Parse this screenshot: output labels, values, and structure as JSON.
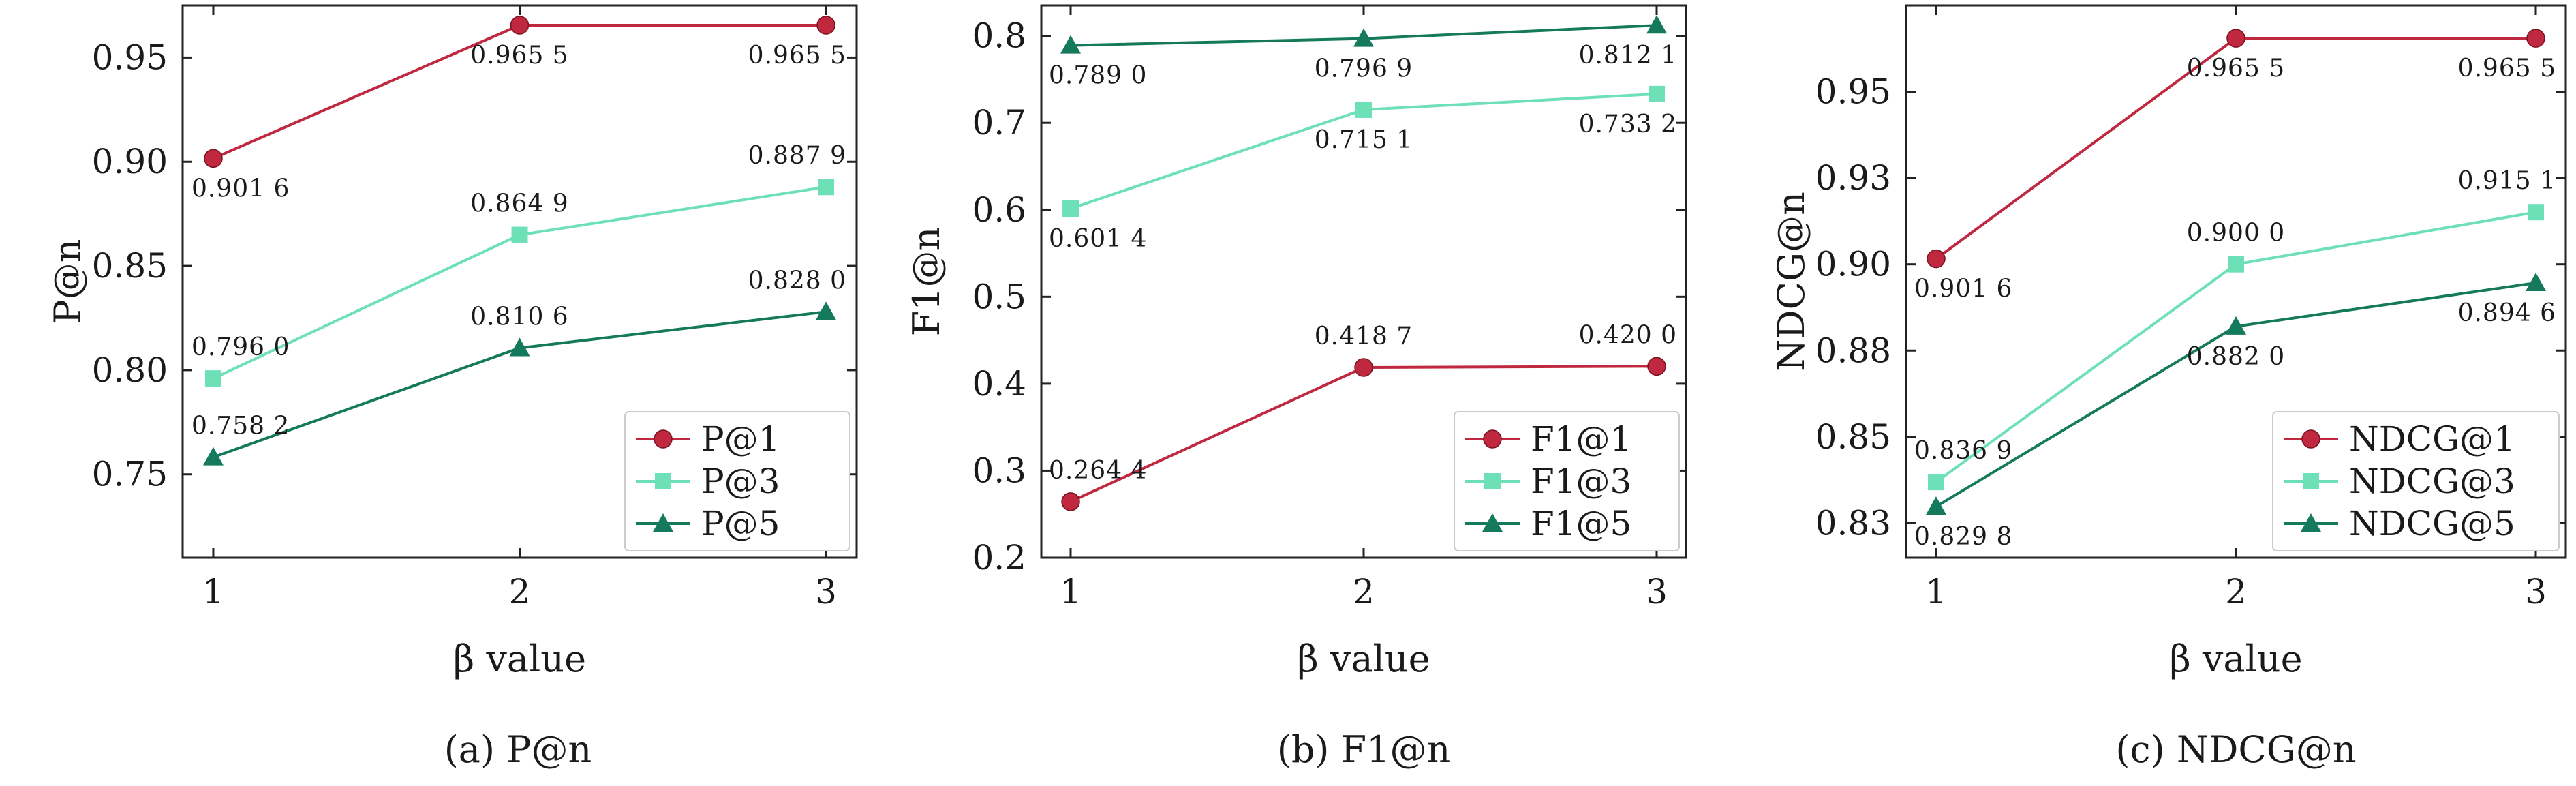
{
  "chart_data": [
    {
      "type": "line",
      "caption": "(a) P@n",
      "xlabel": "β value",
      "ylabel": "P@n",
      "x": [
        1,
        2,
        3
      ],
      "xticks": [
        "1",
        "2",
        "3"
      ],
      "xlim": [
        0.9,
        3.1
      ],
      "ylim": [
        0.71,
        0.975
      ],
      "yticks": [
        "0.75",
        "0.80",
        "0.85",
        "0.90",
        "0.95"
      ],
      "yticks_values": [
        0.75,
        0.8,
        0.85,
        0.9,
        0.95
      ],
      "legend_position": "bottom-right",
      "series": [
        {
          "name": "P@1",
          "color": "#c0283f",
          "marker": "circle",
          "values": [
            0.9016,
            0.9655,
            0.9655
          ],
          "labels": [
            "0.901 6",
            "0.965 5",
            "0.965 5"
          ],
          "label_pos": [
            "below",
            "below",
            "below"
          ]
        },
        {
          "name": "P@3",
          "color": "#6de0b7",
          "marker": "square",
          "values": [
            0.796,
            0.8649,
            0.8879
          ],
          "labels": [
            "0.796 0",
            "0.864 9",
            "0.887 9"
          ],
          "label_pos": [
            "above",
            "above",
            "above"
          ]
        },
        {
          "name": "P@5",
          "color": "#157a5c",
          "marker": "triangle",
          "values": [
            0.7582,
            0.8106,
            0.828
          ],
          "labels": [
            "0.758 2",
            "0.810 6",
            "0.828 0"
          ],
          "label_pos": [
            "above",
            "above",
            "above"
          ]
        }
      ]
    },
    {
      "type": "line",
      "caption": "(b) F1@n",
      "xlabel": "β value",
      "ylabel": "F1@n",
      "x": [
        1,
        2,
        3
      ],
      "xticks": [
        "1",
        "2",
        "3"
      ],
      "xlim": [
        0.9,
        3.1
      ],
      "ylim": [
        0.2,
        0.835
      ],
      "yticks": [
        "0.2",
        "0.3",
        "0.4",
        "0.5",
        "0.6",
        "0.7",
        "0.8"
      ],
      "yticks_values": [
        0.2,
        0.3,
        0.4,
        0.5,
        0.6,
        0.7,
        0.8
      ],
      "legend_position": "bottom-right",
      "series": [
        {
          "name": "F1@1",
          "color": "#c0283f",
          "marker": "circle",
          "values": [
            0.2644,
            0.4187,
            0.42
          ],
          "labels": [
            "0.264 4",
            "0.418 7",
            "0.420 0"
          ],
          "label_pos": [
            "above",
            "above",
            "above"
          ]
        },
        {
          "name": "F1@3",
          "color": "#6de0b7",
          "marker": "square",
          "values": [
            0.6014,
            0.7151,
            0.7332
          ],
          "labels": [
            "0.601 4",
            "0.715 1",
            "0.733 2"
          ],
          "label_pos": [
            "below",
            "below",
            "below"
          ]
        },
        {
          "name": "F1@5",
          "color": "#157a5c",
          "marker": "triangle",
          "values": [
            0.789,
            0.7969,
            0.8121
          ],
          "labels": [
            "0.789 0",
            "0.796 9",
            "0.812 1"
          ],
          "label_pos": [
            "below",
            "below",
            "below"
          ]
        }
      ]
    },
    {
      "type": "line",
      "caption": "(c) NDCG@n",
      "xlabel": "β value",
      "ylabel": "NDCG@n",
      "x": [
        1,
        2,
        3
      ],
      "xticks": [
        "1",
        "2",
        "3"
      ],
      "xlim": [
        0.9,
        3.1
      ],
      "ylim": [
        0.815,
        0.975
      ],
      "yticks": [
        "0.83",
        "0.85",
        "0.88",
        "0.90",
        "0.93",
        "0.95"
      ],
      "yticks_values": [
        0.825,
        0.85,
        0.875,
        0.9,
        0.925,
        0.95
      ],
      "legend_position": "bottom-right",
      "series": [
        {
          "name": "NDCG@1",
          "color": "#c0283f",
          "marker": "circle",
          "values": [
            0.9016,
            0.9655,
            0.9655
          ],
          "labels": [
            "0.901 6",
            "0.965 5",
            "0.965 5"
          ],
          "label_pos": [
            "below",
            "below",
            "below"
          ]
        },
        {
          "name": "NDCG@3",
          "color": "#6de0b7",
          "marker": "square",
          "values": [
            0.8369,
            0.9,
            0.9151
          ],
          "labels": [
            "0.836 9",
            "0.900 0",
            "0.915 1"
          ],
          "label_pos": [
            "above",
            "above",
            "above"
          ]
        },
        {
          "name": "NDCG@5",
          "color": "#157a5c",
          "marker": "triangle",
          "values": [
            0.8298,
            0.882,
            0.8946
          ],
          "labels": [
            "0.829 8",
            "0.882 0",
            "0.894 6"
          ],
          "label_pos": [
            "below",
            "below",
            "below"
          ]
        }
      ]
    }
  ]
}
